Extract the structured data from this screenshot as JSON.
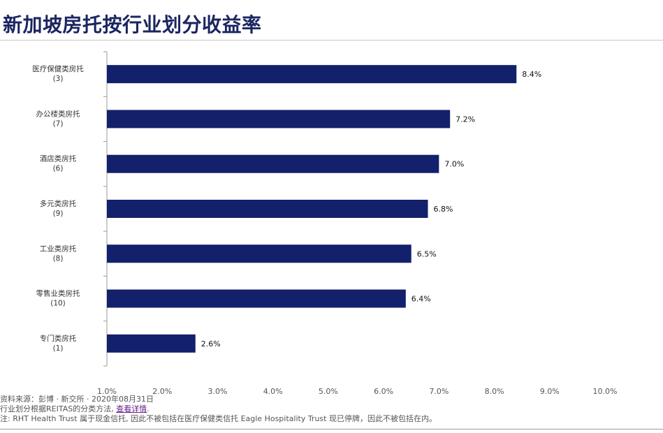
{
  "page": {
    "title": "新加坡房托按行业划分收益率"
  },
  "colors": {
    "bar": "#13206b",
    "axis": "#9a9a9a",
    "title": "#1b2560",
    "link": "#6a1b8a"
  },
  "chart_data": {
    "type": "bar",
    "orientation": "horizontal",
    "title": "新加坡房托按行业划分收益率",
    "xlabel": "",
    "ylabel": "",
    "xlim": [
      1.0,
      10.0
    ],
    "x_ticks": [
      "1.0%",
      "2.0%",
      "3.0%",
      "4.0%",
      "5.0%",
      "6.0%",
      "7.0%",
      "8.0%",
      "9.0%",
      "10.0%"
    ],
    "grid": false,
    "legend": "none",
    "categories": [
      {
        "name": "医疗保健类房托",
        "count": "(3)"
      },
      {
        "name": "办公楼类房托",
        "count": "(7)"
      },
      {
        "name": "酒店类房托",
        "count": "(6)"
      },
      {
        "name": "多元类房托",
        "count": "(9)"
      },
      {
        "name": "工业类房托",
        "count": "(8)"
      },
      {
        "name": "零售业类房托",
        "count": "(10)"
      },
      {
        "name": "专门类房托",
        "count": "(1)"
      }
    ],
    "values": [
      8.4,
      7.2,
      7.0,
      6.8,
      6.5,
      6.4,
      2.6
    ],
    "data_labels": [
      "8.4%",
      "7.2%",
      "7.0%",
      "6.8%",
      "6.5%",
      "6.4%",
      "2.6%"
    ]
  },
  "notes": {
    "source": "资料来源：彭博 · 新交所 · 2020年08月31日",
    "method_prefix": "行业划分根据REITAS的分类方法, ",
    "method_link": "查看详情",
    "method_suffix": ".",
    "footnote": "注: RHT Health Trust 属于现金信托, 因此不被包括在医疗保健类信托 Eagle Hospitality Trust 现已停牌，因此不被包括在内。"
  }
}
